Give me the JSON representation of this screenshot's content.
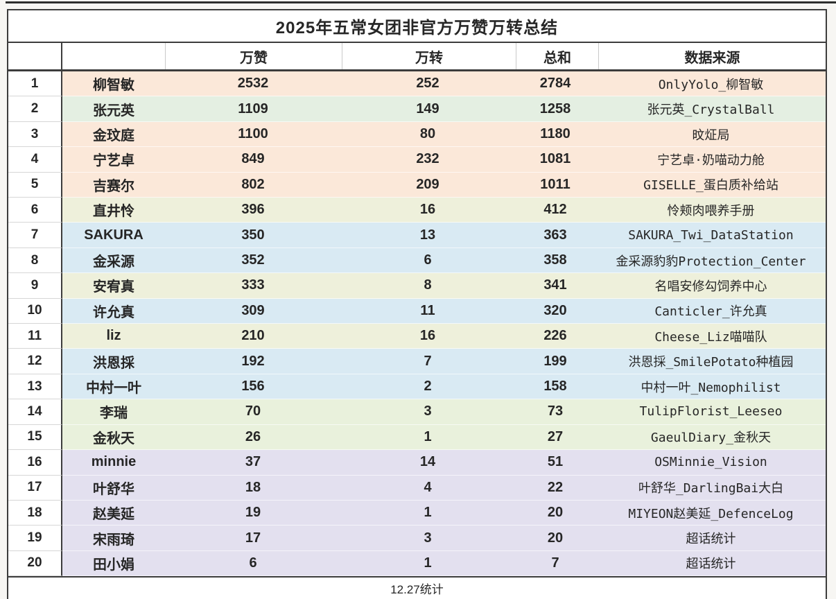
{
  "title": "2025年五常女团非官方万赞万转总结",
  "header": {
    "rank": "",
    "name": "",
    "likes": "万赞",
    "reposts": "万转",
    "total": "总和",
    "source": "数据来源"
  },
  "footer": "12.27统计",
  "row_colors": {
    "peach": "#fbe8d9",
    "mint": "#e4efe2",
    "yellow_green": "#eef0db",
    "blue": "#d9eaf3",
    "green": "#e9f1dc",
    "lavender": "#e3e0ef"
  },
  "rows": [
    {
      "rank": "1",
      "name": "柳智敏",
      "likes": "2532",
      "reposts": "252",
      "total": "2784",
      "source": "OnlyYolo_柳智敏",
      "color": "#fbe8d9"
    },
    {
      "rank": "2",
      "name": "张元英",
      "likes": "1109",
      "reposts": "149",
      "total": "1258",
      "source": "张元英_CrystalBall",
      "color": "#e4efe2"
    },
    {
      "rank": "3",
      "name": "金玟庭",
      "likes": "1100",
      "reposts": "80",
      "total": "1180",
      "source": "旼炡局",
      "color": "#fbe8d9"
    },
    {
      "rank": "4",
      "name": "宁艺卓",
      "likes": "849",
      "reposts": "232",
      "total": "1081",
      "source": "宁艺卓·奶喵动力舱",
      "color": "#fbe8d9"
    },
    {
      "rank": "5",
      "name": "吉赛尔",
      "likes": "802",
      "reposts": "209",
      "total": "1011",
      "source": "GISELLE_蛋白质补给站",
      "color": "#fbe8d9"
    },
    {
      "rank": "6",
      "name": "直井怜",
      "likes": "396",
      "reposts": "16",
      "total": "412",
      "source": "怜颊肉喂养手册",
      "color": "#eef0db"
    },
    {
      "rank": "7",
      "name": "SAKURA",
      "likes": "350",
      "reposts": "13",
      "total": "363",
      "source": "SAKURA_Twi_DataStation",
      "color": "#d9eaf3"
    },
    {
      "rank": "8",
      "name": "金采源",
      "likes": "352",
      "reposts": "6",
      "total": "358",
      "source": "金采源豹豹Protection_Center",
      "color": "#d9eaf3"
    },
    {
      "rank": "9",
      "name": "安宥真",
      "likes": "333",
      "reposts": "8",
      "total": "341",
      "source": "名唱安修勾饲养中心",
      "color": "#eef0db"
    },
    {
      "rank": "10",
      "name": "许允真",
      "likes": "309",
      "reposts": "11",
      "total": "320",
      "source": "Canticler_许允真",
      "color": "#d9eaf3"
    },
    {
      "rank": "11",
      "name": "liz",
      "likes": "210",
      "reposts": "16",
      "total": "226",
      "source": "Cheese_Liz喵喵队",
      "color": "#eef0db"
    },
    {
      "rank": "12",
      "name": "洪恩採",
      "likes": "192",
      "reposts": "7",
      "total": "199",
      "source": "洪恩採_SmilePotato种植园",
      "color": "#d9eaf3"
    },
    {
      "rank": "13",
      "name": "中村一叶",
      "likes": "156",
      "reposts": "2",
      "total": "158",
      "source": "中村一叶_Nemophilist",
      "color": "#d9eaf3"
    },
    {
      "rank": "14",
      "name": "李瑞",
      "likes": "70",
      "reposts": "3",
      "total": "73",
      "source": "TulipFlorist_Leeseo",
      "color": "#e9f1dc"
    },
    {
      "rank": "15",
      "name": "金秋天",
      "likes": "26",
      "reposts": "1",
      "total": "27",
      "source": "GaeulDiary_金秋天",
      "color": "#e9f1dc"
    },
    {
      "rank": "16",
      "name": "minnie",
      "likes": "37",
      "reposts": "14",
      "total": "51",
      "source": "OSMinnie_Vision",
      "color": "#e3e0ef"
    },
    {
      "rank": "17",
      "name": "叶舒华",
      "likes": "18",
      "reposts": "4",
      "total": "22",
      "source": "叶舒华_DarlingBai大白",
      "color": "#e3e0ef"
    },
    {
      "rank": "18",
      "name": "赵美延",
      "likes": "19",
      "reposts": "1",
      "total": "20",
      "source": "MIYEON赵美延_DefenceLog",
      "color": "#e3e0ef"
    },
    {
      "rank": "19",
      "name": "宋雨琦",
      "likes": "17",
      "reposts": "3",
      "total": "20",
      "source": "超话统计",
      "color": "#e3e0ef"
    },
    {
      "rank": "20",
      "name": "田小娟",
      "likes": "6",
      "reposts": "1",
      "total": "7",
      "source": "超话统计",
      "color": "#e3e0ef"
    }
  ],
  "chart_data": {
    "type": "table",
    "title": "2025年五常女团非官方万赞万转总结",
    "columns": [
      "",
      "",
      "万赞",
      "万转",
      "总和",
      "数据来源"
    ],
    "rows": [
      [
        "1",
        "柳智敏",
        2532,
        252,
        2784,
        "OnlyYolo_柳智敏"
      ],
      [
        "2",
        "张元英",
        1109,
        149,
        1258,
        "张元英_CrystalBall"
      ],
      [
        "3",
        "金玟庭",
        1100,
        80,
        1180,
        "旼炡局"
      ],
      [
        "4",
        "宁艺卓",
        849,
        232,
        1081,
        "宁艺卓·奶喵动力舱"
      ],
      [
        "5",
        "吉赛尔",
        802,
        209,
        1011,
        "GISELLE_蛋白质补给站"
      ],
      [
        "6",
        "直井怜",
        396,
        16,
        412,
        "怜颊肉喂养手册"
      ],
      [
        "7",
        "SAKURA",
        350,
        13,
        363,
        "SAKURA_Twi_DataStation"
      ],
      [
        "8",
        "金采源",
        352,
        6,
        358,
        "金采源豹豹Protection_Center"
      ],
      [
        "9",
        "安宥真",
        333,
        8,
        341,
        "名唱安修勾饲养中心"
      ],
      [
        "10",
        "许允真",
        309,
        11,
        320,
        "Canticler_许允真"
      ],
      [
        "11",
        "liz",
        210,
        16,
        226,
        "Cheese_Liz喵喵队"
      ],
      [
        "12",
        "洪恩採",
        192,
        7,
        199,
        "洪恩採_SmilePotato种植园"
      ],
      [
        "13",
        "中村一叶",
        156,
        2,
        158,
        "中村一叶_Nemophilist"
      ],
      [
        "14",
        "李瑞",
        70,
        3,
        73,
        "TulipFlorist_Leeseo"
      ],
      [
        "15",
        "金秋天",
        26,
        1,
        27,
        "GaeulDiary_金秋天"
      ],
      [
        "16",
        "minnie",
        37,
        14,
        51,
        "OSMinnie_Vision"
      ],
      [
        "17",
        "叶舒华",
        18,
        4,
        22,
        "叶舒华_DarlingBai大白"
      ],
      [
        "18",
        "赵美延",
        19,
        1,
        20,
        "MIYEON赵美延_DefenceLog"
      ],
      [
        "19",
        "宋雨琦",
        17,
        3,
        20,
        "超话统计"
      ],
      [
        "20",
        "田小娟",
        6,
        1,
        7,
        "超话统计"
      ]
    ],
    "footer_note": "12.27统计"
  }
}
